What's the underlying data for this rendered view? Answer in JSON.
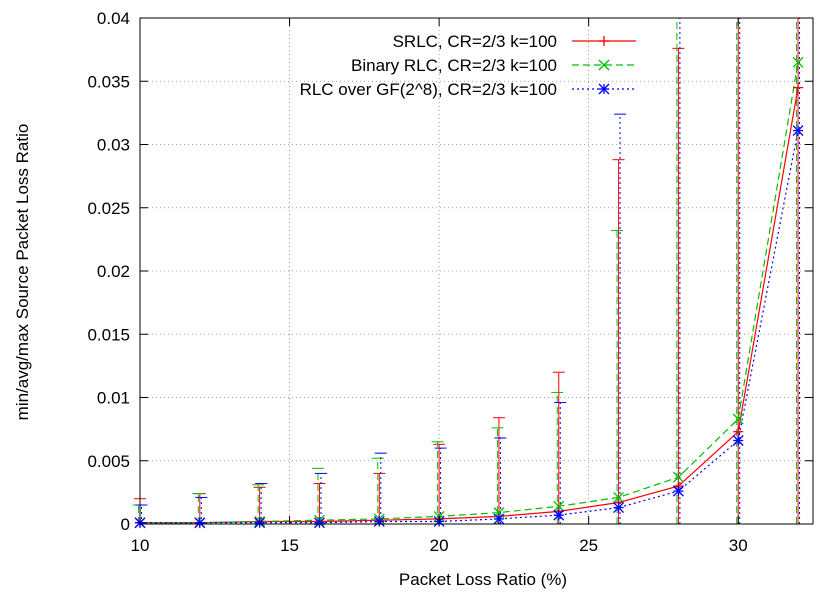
{
  "chart_data": {
    "type": "line",
    "title": "",
    "xlabel": "Packet Loss Ratio (%)",
    "ylabel": "min/avg/max Source Packet Loss Ratio",
    "xlim": [
      10,
      32.5
    ],
    "ylim": [
      0,
      0.04
    ],
    "x_ticks": [
      10,
      15,
      20,
      25,
      30
    ],
    "x_tick_labels": [
      "10",
      "15",
      "20",
      "25",
      "30"
    ],
    "y_ticks": [
      0,
      0.005,
      0.01,
      0.015,
      0.02,
      0.025,
      0.03,
      0.035,
      0.04
    ],
    "y_tick_labels": [
      "0",
      "0.005",
      "0.01",
      "0.015",
      "0.02",
      "0.025",
      "0.03",
      "0.035",
      "0.04"
    ],
    "grid": true,
    "legend_position": "top-right",
    "x": [
      10,
      12,
      14,
      16,
      18,
      20,
      22,
      24,
      26,
      28,
      30,
      32
    ],
    "series": [
      {
        "name": "SRLC, CR=2/3 k=100",
        "color": "#ff0000",
        "dash": "solid",
        "marker": "plus",
        "avg": [
          0.0001,
          0.0001,
          0.0002,
          0.0002,
          0.0003,
          0.0004,
          0.0006,
          0.001,
          0.0017,
          0.003,
          0.0073,
          0.0345
        ],
        "min": [
          0,
          0,
          0,
          0,
          0,
          0,
          0,
          0,
          0,
          0,
          0,
          0
        ],
        "max": [
          0.002,
          0.0024,
          0.0029,
          0.0032,
          0.004,
          0.0063,
          0.0084,
          0.012,
          0.0288,
          0.0376,
          0.04,
          0.04
        ]
      },
      {
        "name": "Binary RLC, CR=2/3 k=100",
        "color": "#00c000",
        "dash": "dashed",
        "marker": "x",
        "avg": [
          0.0001,
          0.0001,
          0.0002,
          0.0003,
          0.0004,
          0.0006,
          0.0009,
          0.0014,
          0.0021,
          0.0037,
          0.0083,
          0.0365
        ],
        "min": [
          0,
          0,
          0,
          0,
          0,
          0,
          0,
          0,
          0,
          0,
          0,
          0
        ],
        "max": [
          0.0015,
          0.0024,
          0.0031,
          0.0044,
          0.0052,
          0.0065,
          0.0076,
          0.0104,
          0.0232,
          0.04,
          0.04,
          0.04
        ]
      },
      {
        "name": "RLC over GF(2^8), CR=2/3 k=100",
        "color": "#0000ff",
        "dash": "dotted",
        "marker": "star",
        "avg": [
          0.0001,
          0.0001,
          0.0001,
          0.0001,
          0.0002,
          0.0002,
          0.0004,
          0.0007,
          0.0013,
          0.0026,
          0.0066,
          0.0311
        ],
        "min": [
          0,
          0,
          0,
          0,
          0,
          0,
          0,
          0,
          0,
          0,
          0,
          0
        ],
        "max": [
          0.0015,
          0.0021,
          0.0032,
          0.004,
          0.0056,
          0.006,
          0.0068,
          0.0096,
          0.0324,
          0.04,
          0.04,
          0.04
        ]
      }
    ]
  }
}
